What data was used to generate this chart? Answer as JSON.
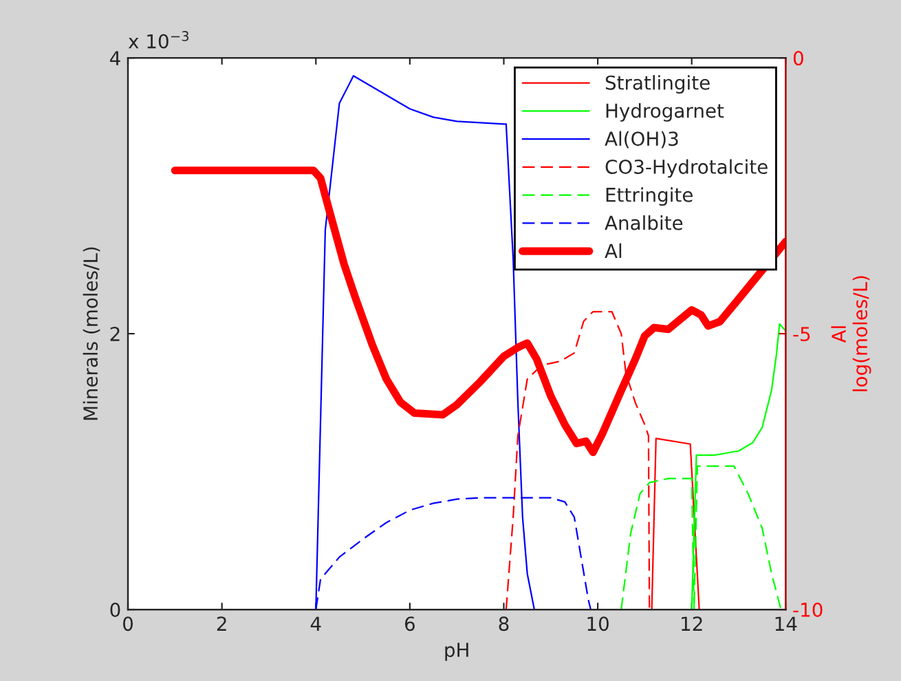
{
  "chart_data": {
    "type": "line",
    "xlabel": "pH",
    "ylabel": "Minerals (moles/L)",
    "y2label": "Al\nlog(moles/L)",
    "annotations": [
      "x 10$^{−3}$"
    ],
    "xlim": [
      0,
      14
    ],
    "xticks": [
      0,
      2,
      4,
      6,
      8,
      10,
      12,
      14
    ],
    "ylim": [
      0,
      4
    ],
    "yticks": [
      0,
      2,
      4
    ],
    "y2lim": [
      -10,
      0
    ],
    "y2ticks": [
      -10,
      -5,
      0
    ],
    "grid": false,
    "legend": "top right",
    "marker": "none",
    "series": [
      {
        "name": "Stratlingite",
        "color": "#ff0000",
        "line_style": "solid",
        "x": [
          11.15,
          11.24,
          11.97,
          12.16
        ],
        "values": [
          0,
          1.24,
          1.2,
          0
        ]
      },
      {
        "name": "Hydrogarnet",
        "color": "#00ff00",
        "line_style": "solid",
        "x": [
          11.0,
          12.0,
          12.1,
          12.5,
          13.0,
          13.3,
          13.5,
          13.7,
          13.8,
          13.87,
          14.0
        ],
        "values": [
          0,
          0,
          1.12,
          1.12,
          1.15,
          1.21,
          1.32,
          1.59,
          1.84,
          2.07,
          2.02
        ]
      },
      {
        "name": "Al(OH)3",
        "color": "#0000ff",
        "line_style": "solid",
        "x": [
          4.0,
          4.2,
          4.5,
          4.8,
          5.0,
          5.5,
          6.0,
          6.5,
          7.0,
          7.5,
          8.0,
          8.05,
          8.2,
          8.3,
          8.4,
          8.5,
          8.65
        ],
        "values": [
          0,
          2.75,
          3.67,
          3.87,
          3.83,
          3.73,
          3.63,
          3.57,
          3.54,
          3.53,
          3.52,
          3.52,
          2.54,
          1.5,
          0.67,
          0.26,
          0
        ]
      },
      {
        "name": "CO3-Hydrotalcite",
        "color": "#ff0000",
        "line_style": "dashed",
        "x": [
          8.05,
          8.2,
          8.3,
          8.5,
          8.8,
          9.2,
          9.5,
          9.7,
          9.9,
          10.3,
          10.5,
          10.6,
          10.8,
          11.0,
          11.08,
          11.1
        ],
        "values": [
          0,
          0.67,
          1.26,
          1.67,
          1.77,
          1.8,
          1.86,
          2.09,
          2.16,
          2.16,
          2.0,
          1.71,
          1.5,
          1.34,
          1.26,
          0
        ]
      },
      {
        "name": "Ettringite",
        "color": "#00ff00",
        "line_style": "dashed",
        "x": [
          10.5,
          10.7,
          10.9,
          11.1,
          11.5,
          12.0,
          12.05,
          12.12,
          12.9,
          13.2,
          13.5,
          13.7,
          13.9
        ],
        "values": [
          0,
          0.55,
          0.84,
          0.92,
          0.95,
          0.95,
          0,
          1.04,
          1.04,
          0.84,
          0.59,
          0.26,
          0
        ]
      },
      {
        "name": "Analbite",
        "color": "#0000ff",
        "line_style": "dashed",
        "x": [
          4.0,
          4.1,
          4.5,
          5.0,
          5.5,
          6.0,
          6.5,
          7.0,
          7.5,
          8.0,
          9.0,
          9.3,
          9.5,
          9.6,
          9.8,
          9.85
        ],
        "values": [
          0,
          0.22,
          0.38,
          0.51,
          0.63,
          0.72,
          0.77,
          0.8,
          0.81,
          0.81,
          0.81,
          0.78,
          0.67,
          0.47,
          0.07,
          0
        ]
      },
      {
        "name": "Al",
        "color": "#ff0000",
        "line_style": "solid",
        "axis": "y2",
        "x": [
          1.0,
          3.95,
          4.1,
          4.3,
          4.6,
          4.85,
          5.2,
          5.5,
          5.8,
          6.1,
          6.7,
          7.0,
          7.5,
          8.0,
          8.3,
          8.5,
          8.7,
          9.0,
          9.3,
          9.55,
          9.75,
          9.9,
          10.1,
          10.5,
          10.8,
          11.0,
          11.2,
          11.5,
          12.0,
          12.2,
          12.35,
          12.6,
          13.0,
          13.5,
          14.0
        ],
        "values": [
          -2.04,
          -2.04,
          -2.18,
          -2.81,
          -3.74,
          -4.37,
          -5.2,
          -5.82,
          -6.24,
          -6.44,
          -6.47,
          -6.29,
          -5.87,
          -5.41,
          -5.25,
          -5.17,
          -5.46,
          -6.13,
          -6.65,
          -6.99,
          -6.95,
          -7.15,
          -6.81,
          -6.03,
          -5.46,
          -5.04,
          -4.89,
          -4.92,
          -4.57,
          -4.66,
          -4.86,
          -4.78,
          -4.37,
          -3.85,
          -3.33
        ]
      }
    ]
  }
}
